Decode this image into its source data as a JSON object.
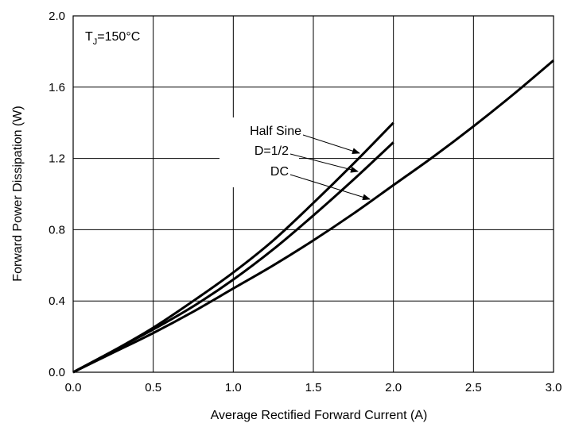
{
  "chart_data": {
    "type": "line",
    "title": "",
    "xlabel": "Average Rectified Forward Current (A)",
    "ylabel": "Forward Power Dissipation (W)",
    "xlim": [
      0,
      3
    ],
    "ylim": [
      0,
      2
    ],
    "xticks": [
      0,
      0.5,
      1,
      1.5,
      2,
      2.5,
      3
    ],
    "yticks": [
      0,
      0.4,
      0.8,
      1.2,
      1.6,
      2
    ],
    "xtick_labels": [
      "0.0",
      "0.5",
      "1.0",
      "1.5",
      "2.0",
      "2.5",
      "3.0"
    ],
    "ytick_labels": [
      "0.0",
      "0.4",
      "0.8",
      "1.2",
      "1.6",
      "2.0"
    ],
    "grid": true,
    "annotation": {
      "prefix": "T",
      "subscript": "J",
      "suffix": "=150°C"
    },
    "series": [
      {
        "name": "Half Sine",
        "x": [
          0,
          0.25,
          0.5,
          0.75,
          1.0,
          1.25,
          1.5,
          1.75,
          2.0
        ],
        "y": [
          0,
          0.12,
          0.25,
          0.4,
          0.56,
          0.74,
          0.95,
          1.17,
          1.4
        ]
      },
      {
        "name": "D=1/2",
        "x": [
          0,
          0.25,
          0.5,
          0.75,
          1.0,
          1.25,
          1.5,
          1.75,
          2.0
        ],
        "y": [
          0,
          0.12,
          0.24,
          0.37,
          0.52,
          0.69,
          0.88,
          1.08,
          1.29
        ]
      },
      {
        "name": "DC",
        "x": [
          0,
          0.25,
          0.5,
          0.75,
          1.0,
          1.25,
          1.5,
          1.75,
          2.0,
          2.25,
          2.5,
          2.75,
          3.0
        ],
        "y": [
          0,
          0.11,
          0.22,
          0.34,
          0.47,
          0.6,
          0.74,
          0.89,
          1.05,
          1.21,
          1.38,
          1.56,
          1.75
        ]
      }
    ]
  }
}
